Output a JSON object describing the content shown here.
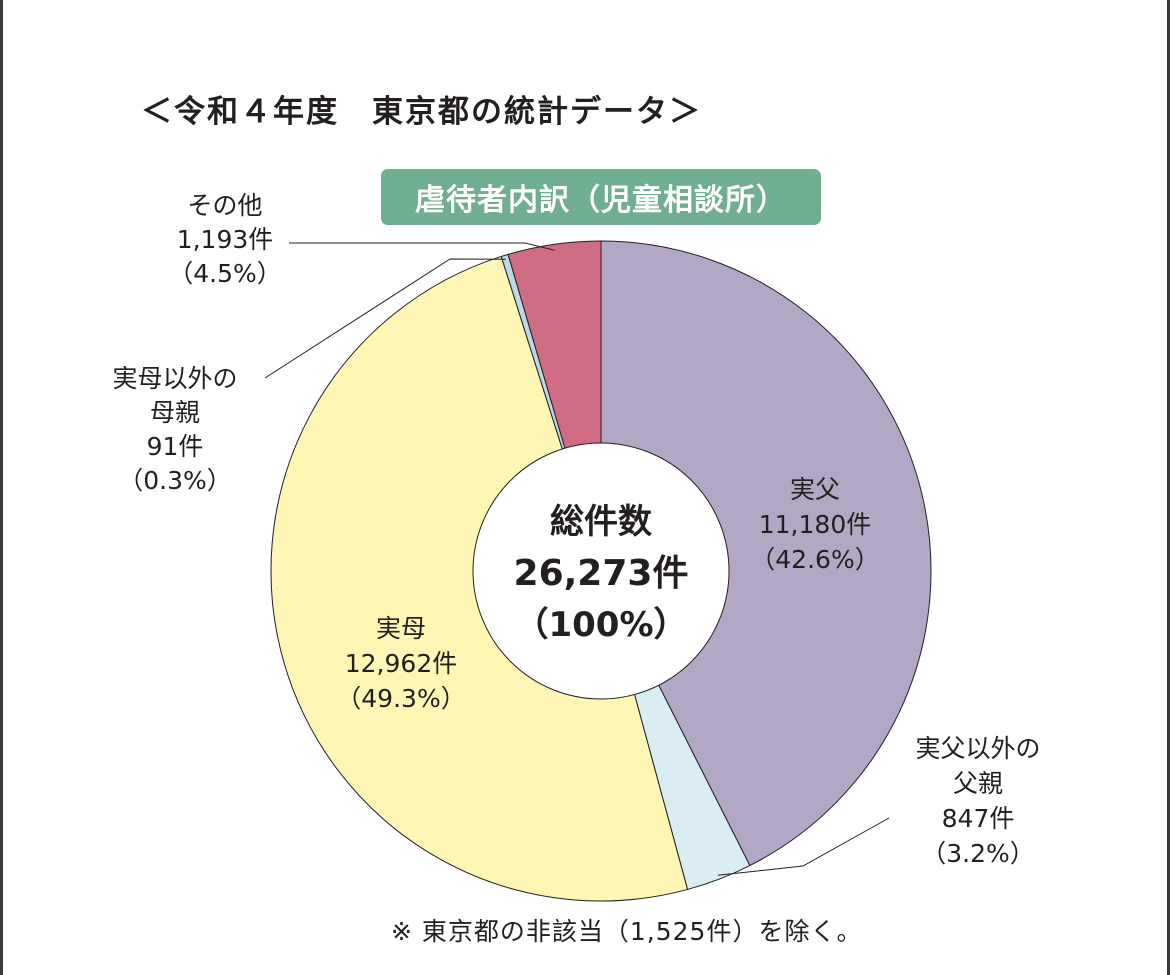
{
  "header": {
    "title": "＜令和４年度　東京都の統計データ＞"
  },
  "footnote": "※ 東京都の非該当（1,525件）を除く。",
  "chart_data": {
    "type": "pie",
    "title": "虐待者内訳（児童相談所）",
    "donut": true,
    "center": {
      "line1": "総件数",
      "line2": "26,273件",
      "line3": "（100%）"
    },
    "unit": "件",
    "slices": [
      {
        "label_lines": [
          "実父"
        ],
        "value": 11180,
        "percent": 42.6,
        "count_text": "11,180件",
        "percent_text": "（42.6%）",
        "color": "#b3a7c6"
      },
      {
        "label_lines": [
          "実父以外の",
          "父親"
        ],
        "value": 847,
        "percent": 3.2,
        "count_text": "847件",
        "percent_text": "（3.2%）",
        "color": "#d9edf2"
      },
      {
        "label_lines": [
          "実母"
        ],
        "value": 12962,
        "percent": 49.3,
        "count_text": "12,962件",
        "percent_text": "（49.3%）",
        "color": "#fdf6b5"
      },
      {
        "label_lines": [
          "実母以外の",
          "母親"
        ],
        "value": 91,
        "percent": 0.3,
        "count_text": "91件",
        "percent_text": "（0.3%）",
        "color": "#bdd9e6"
      },
      {
        "label_lines": [
          "その他"
        ],
        "value": 1193,
        "percent": 4.5,
        "count_text": "1,193件",
        "percent_text": "（4.5%）",
        "color": "#d06d85"
      }
    ]
  }
}
